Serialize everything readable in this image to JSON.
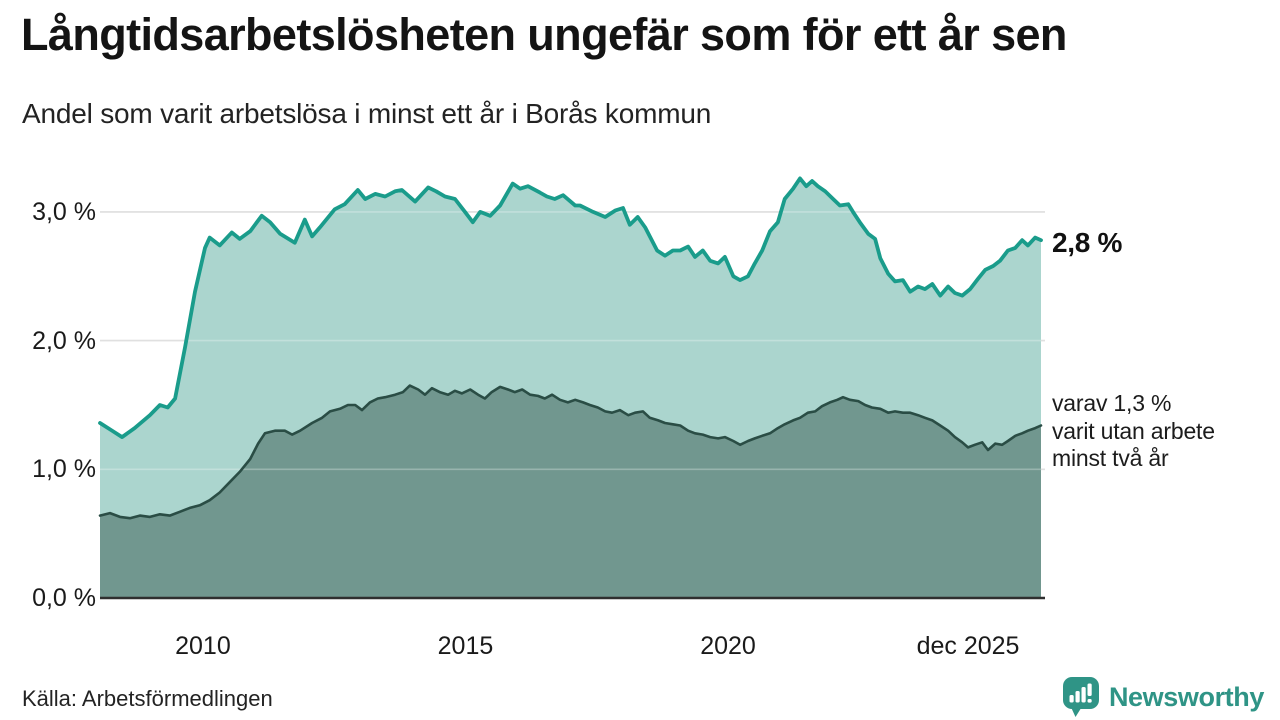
{
  "header": {
    "title": "Långtidsarbetslösheten ungefär som för ett år sen",
    "subtitle": "Andel som varit arbetslösa i minst ett år i Borås kommun"
  },
  "annotations": {
    "latest_value": "2,8 %",
    "secondary_lines": [
      "varav 1,3 %",
      "varit utan arbete",
      "minst två år"
    ]
  },
  "footer": {
    "source": "Källa: Arbetsförmedlingen",
    "brand": "Newsworthy"
  },
  "colors": {
    "accent_line": "#1a9c8b",
    "accent_fill": "#abd5ce",
    "secondary_line": "#2a4d45",
    "secondary_fill": "#71978f",
    "gridline": "#d5d5d5",
    "grid_overlay": "rgba(255,255,255,0.28)",
    "axis_line": "#2f2f2f",
    "brand_teal": "#2f9486"
  },
  "chart_data": {
    "type": "area",
    "title": "Långtidsarbetslösheten ungefär som för ett år sen",
    "subtitle": "Andel som varit arbetslösa i minst ett år i Borås kommun",
    "unit": "%",
    "grid": true,
    "legend": "none",
    "x_range": [
      2008.04,
      2025.96
    ],
    "ylim": [
      0,
      3.35
    ],
    "y_ticks": [
      {
        "value": 3.0,
        "label": "3,0 %"
      },
      {
        "value": 2.0,
        "label": "2,0 %"
      },
      {
        "value": 1.0,
        "label": "1,0 %"
      },
      {
        "value": 0.0,
        "label": "0,0 %"
      }
    ],
    "x_ticks": [
      {
        "center": 2010.0,
        "label": "2010"
      },
      {
        "center": 2015.0,
        "label": "2015"
      },
      {
        "center": 2020.0,
        "label": "2020"
      },
      {
        "center": 2024.57,
        "label": "dec 2025"
      }
    ],
    "series": [
      {
        "name": "Arbetslösa minst ett år",
        "end_label": "2,8 %",
        "line": "#1a9c8b",
        "fill": "#abd5ce",
        "line_width": 3.8,
        "points": [
          [
            2008.04,
            1.36
          ],
          [
            2008.27,
            1.3
          ],
          [
            2008.46,
            1.25
          ],
          [
            2008.7,
            1.32
          ],
          [
            2008.99,
            1.42
          ],
          [
            2009.18,
            1.5
          ],
          [
            2009.33,
            1.48
          ],
          [
            2009.47,
            1.55
          ],
          [
            2009.66,
            1.95
          ],
          [
            2009.85,
            2.38
          ],
          [
            2010.04,
            2.72
          ],
          [
            2010.13,
            2.8
          ],
          [
            2010.32,
            2.74
          ],
          [
            2010.55,
            2.84
          ],
          [
            2010.7,
            2.79
          ],
          [
            2010.9,
            2.85
          ],
          [
            2011.12,
            2.97
          ],
          [
            2011.28,
            2.92
          ],
          [
            2011.47,
            2.83
          ],
          [
            2011.75,
            2.76
          ],
          [
            2011.94,
            2.94
          ],
          [
            2012.08,
            2.81
          ],
          [
            2012.23,
            2.88
          ],
          [
            2012.51,
            3.02
          ],
          [
            2012.7,
            3.06
          ],
          [
            2012.95,
            3.17
          ],
          [
            2013.09,
            3.1
          ],
          [
            2013.28,
            3.14
          ],
          [
            2013.47,
            3.12
          ],
          [
            2013.66,
            3.16
          ],
          [
            2013.79,
            3.17
          ],
          [
            2014.04,
            3.08
          ],
          [
            2014.29,
            3.19
          ],
          [
            2014.44,
            3.16
          ],
          [
            2014.61,
            3.12
          ],
          [
            2014.8,
            3.1
          ],
          [
            2014.99,
            3.0
          ],
          [
            2015.14,
            2.92
          ],
          [
            2015.28,
            3.0
          ],
          [
            2015.47,
            2.97
          ],
          [
            2015.66,
            3.05
          ],
          [
            2015.9,
            3.22
          ],
          [
            2016.04,
            3.18
          ],
          [
            2016.19,
            3.2
          ],
          [
            2016.42,
            3.15
          ],
          [
            2016.55,
            3.12
          ],
          [
            2016.7,
            3.1
          ],
          [
            2016.86,
            3.13
          ],
          [
            2017.09,
            3.05
          ],
          [
            2017.18,
            3.05
          ],
          [
            2017.43,
            3.0
          ],
          [
            2017.66,
            2.96
          ],
          [
            2017.85,
            3.01
          ],
          [
            2018.0,
            3.03
          ],
          [
            2018.13,
            2.9
          ],
          [
            2018.28,
            2.96
          ],
          [
            2018.42,
            2.88
          ],
          [
            2018.65,
            2.7
          ],
          [
            2018.8,
            2.66
          ],
          [
            2018.95,
            2.7
          ],
          [
            2019.09,
            2.7
          ],
          [
            2019.24,
            2.73
          ],
          [
            2019.37,
            2.65
          ],
          [
            2019.52,
            2.7
          ],
          [
            2019.66,
            2.62
          ],
          [
            2019.81,
            2.6
          ],
          [
            2019.94,
            2.65
          ],
          [
            2020.1,
            2.5
          ],
          [
            2020.23,
            2.47
          ],
          [
            2020.38,
            2.5
          ],
          [
            2020.51,
            2.6
          ],
          [
            2020.65,
            2.7
          ],
          [
            2020.8,
            2.85
          ],
          [
            2020.95,
            2.92
          ],
          [
            2021.08,
            3.1
          ],
          [
            2021.24,
            3.18
          ],
          [
            2021.37,
            3.26
          ],
          [
            2021.49,
            3.2
          ],
          [
            2021.6,
            3.24
          ],
          [
            2021.71,
            3.2
          ],
          [
            2021.85,
            3.16
          ],
          [
            2022.0,
            3.1
          ],
          [
            2022.13,
            3.05
          ],
          [
            2022.29,
            3.06
          ],
          [
            2022.38,
            3.0
          ],
          [
            2022.51,
            2.92
          ],
          [
            2022.67,
            2.83
          ],
          [
            2022.8,
            2.79
          ],
          [
            2022.9,
            2.64
          ],
          [
            2023.05,
            2.52
          ],
          [
            2023.18,
            2.46
          ],
          [
            2023.33,
            2.47
          ],
          [
            2023.47,
            2.38
          ],
          [
            2023.62,
            2.42
          ],
          [
            2023.75,
            2.4
          ],
          [
            2023.89,
            2.44
          ],
          [
            2024.04,
            2.35
          ],
          [
            2024.19,
            2.42
          ],
          [
            2024.32,
            2.37
          ],
          [
            2024.46,
            2.35
          ],
          [
            2024.61,
            2.4
          ],
          [
            2024.76,
            2.48
          ],
          [
            2024.9,
            2.55
          ],
          [
            2025.05,
            2.58
          ],
          [
            2025.18,
            2.62
          ],
          [
            2025.33,
            2.7
          ],
          [
            2025.47,
            2.72
          ],
          [
            2025.6,
            2.78
          ],
          [
            2025.71,
            2.74
          ],
          [
            2025.85,
            2.8
          ],
          [
            2025.96,
            2.78
          ]
        ]
      },
      {
        "name": "varav utan arbete minst två år",
        "end_label": "1,3 %",
        "line": "#2a4d45",
        "fill": "#71978f",
        "line_width": 2.6,
        "points": [
          [
            2008.04,
            0.64
          ],
          [
            2008.23,
            0.66
          ],
          [
            2008.42,
            0.63
          ],
          [
            2008.61,
            0.62
          ],
          [
            2008.8,
            0.64
          ],
          [
            2008.99,
            0.63
          ],
          [
            2009.18,
            0.65
          ],
          [
            2009.37,
            0.64
          ],
          [
            2009.56,
            0.67
          ],
          [
            2009.75,
            0.7
          ],
          [
            2009.94,
            0.72
          ],
          [
            2010.13,
            0.76
          ],
          [
            2010.32,
            0.82
          ],
          [
            2010.51,
            0.9
          ],
          [
            2010.7,
            0.98
          ],
          [
            2010.9,
            1.08
          ],
          [
            2011.05,
            1.2
          ],
          [
            2011.18,
            1.28
          ],
          [
            2011.37,
            1.3
          ],
          [
            2011.56,
            1.3
          ],
          [
            2011.7,
            1.27
          ],
          [
            2011.85,
            1.3
          ],
          [
            2012.08,
            1.36
          ],
          [
            2012.27,
            1.4
          ],
          [
            2012.42,
            1.45
          ],
          [
            2012.61,
            1.47
          ],
          [
            2012.76,
            1.5
          ],
          [
            2012.9,
            1.5
          ],
          [
            2013.03,
            1.46
          ],
          [
            2013.18,
            1.52
          ],
          [
            2013.33,
            1.55
          ],
          [
            2013.47,
            1.56
          ],
          [
            2013.66,
            1.58
          ],
          [
            2013.81,
            1.6
          ],
          [
            2013.94,
            1.65
          ],
          [
            2014.1,
            1.62
          ],
          [
            2014.23,
            1.58
          ],
          [
            2014.36,
            1.63
          ],
          [
            2014.51,
            1.6
          ],
          [
            2014.67,
            1.58
          ],
          [
            2014.8,
            1.61
          ],
          [
            2014.93,
            1.59
          ],
          [
            2015.09,
            1.62
          ],
          [
            2015.24,
            1.58
          ],
          [
            2015.37,
            1.55
          ],
          [
            2015.5,
            1.6
          ],
          [
            2015.66,
            1.64
          ],
          [
            2015.81,
            1.62
          ],
          [
            2015.94,
            1.6
          ],
          [
            2016.08,
            1.62
          ],
          [
            2016.23,
            1.58
          ],
          [
            2016.38,
            1.57
          ],
          [
            2016.51,
            1.55
          ],
          [
            2016.65,
            1.58
          ],
          [
            2016.8,
            1.54
          ],
          [
            2016.95,
            1.52
          ],
          [
            2017.09,
            1.54
          ],
          [
            2017.24,
            1.52
          ],
          [
            2017.37,
            1.5
          ],
          [
            2017.52,
            1.48
          ],
          [
            2017.66,
            1.45
          ],
          [
            2017.79,
            1.44
          ],
          [
            2017.94,
            1.46
          ],
          [
            2018.1,
            1.42
          ],
          [
            2018.23,
            1.44
          ],
          [
            2018.38,
            1.45
          ],
          [
            2018.51,
            1.4
          ],
          [
            2018.67,
            1.38
          ],
          [
            2018.8,
            1.36
          ],
          [
            2018.95,
            1.35
          ],
          [
            2019.09,
            1.34
          ],
          [
            2019.24,
            1.3
          ],
          [
            2019.37,
            1.28
          ],
          [
            2019.52,
            1.27
          ],
          [
            2019.66,
            1.25
          ],
          [
            2019.81,
            1.24
          ],
          [
            2019.94,
            1.25
          ],
          [
            2020.1,
            1.22
          ],
          [
            2020.23,
            1.19
          ],
          [
            2020.38,
            1.22
          ],
          [
            2020.51,
            1.24
          ],
          [
            2020.65,
            1.26
          ],
          [
            2020.8,
            1.28
          ],
          [
            2020.95,
            1.32
          ],
          [
            2021.08,
            1.35
          ],
          [
            2021.24,
            1.38
          ],
          [
            2021.37,
            1.4
          ],
          [
            2021.52,
            1.44
          ],
          [
            2021.66,
            1.45
          ],
          [
            2021.79,
            1.49
          ],
          [
            2021.94,
            1.52
          ],
          [
            2022.08,
            1.54
          ],
          [
            2022.19,
            1.56
          ],
          [
            2022.32,
            1.54
          ],
          [
            2022.48,
            1.53
          ],
          [
            2022.61,
            1.5
          ],
          [
            2022.74,
            1.48
          ],
          [
            2022.9,
            1.47
          ],
          [
            2023.05,
            1.44
          ],
          [
            2023.18,
            1.45
          ],
          [
            2023.33,
            1.44
          ],
          [
            2023.47,
            1.44
          ],
          [
            2023.62,
            1.42
          ],
          [
            2023.75,
            1.4
          ],
          [
            2023.89,
            1.38
          ],
          [
            2024.04,
            1.34
          ],
          [
            2024.19,
            1.3
          ],
          [
            2024.32,
            1.25
          ],
          [
            2024.46,
            1.21
          ],
          [
            2024.57,
            1.17
          ],
          [
            2024.7,
            1.19
          ],
          [
            2024.84,
            1.21
          ],
          [
            2024.95,
            1.15
          ],
          [
            2025.09,
            1.2
          ],
          [
            2025.22,
            1.19
          ],
          [
            2025.33,
            1.22
          ],
          [
            2025.47,
            1.26
          ],
          [
            2025.6,
            1.28
          ],
          [
            2025.71,
            1.3
          ],
          [
            2025.85,
            1.32
          ],
          [
            2025.96,
            1.34
          ]
        ]
      }
    ]
  }
}
